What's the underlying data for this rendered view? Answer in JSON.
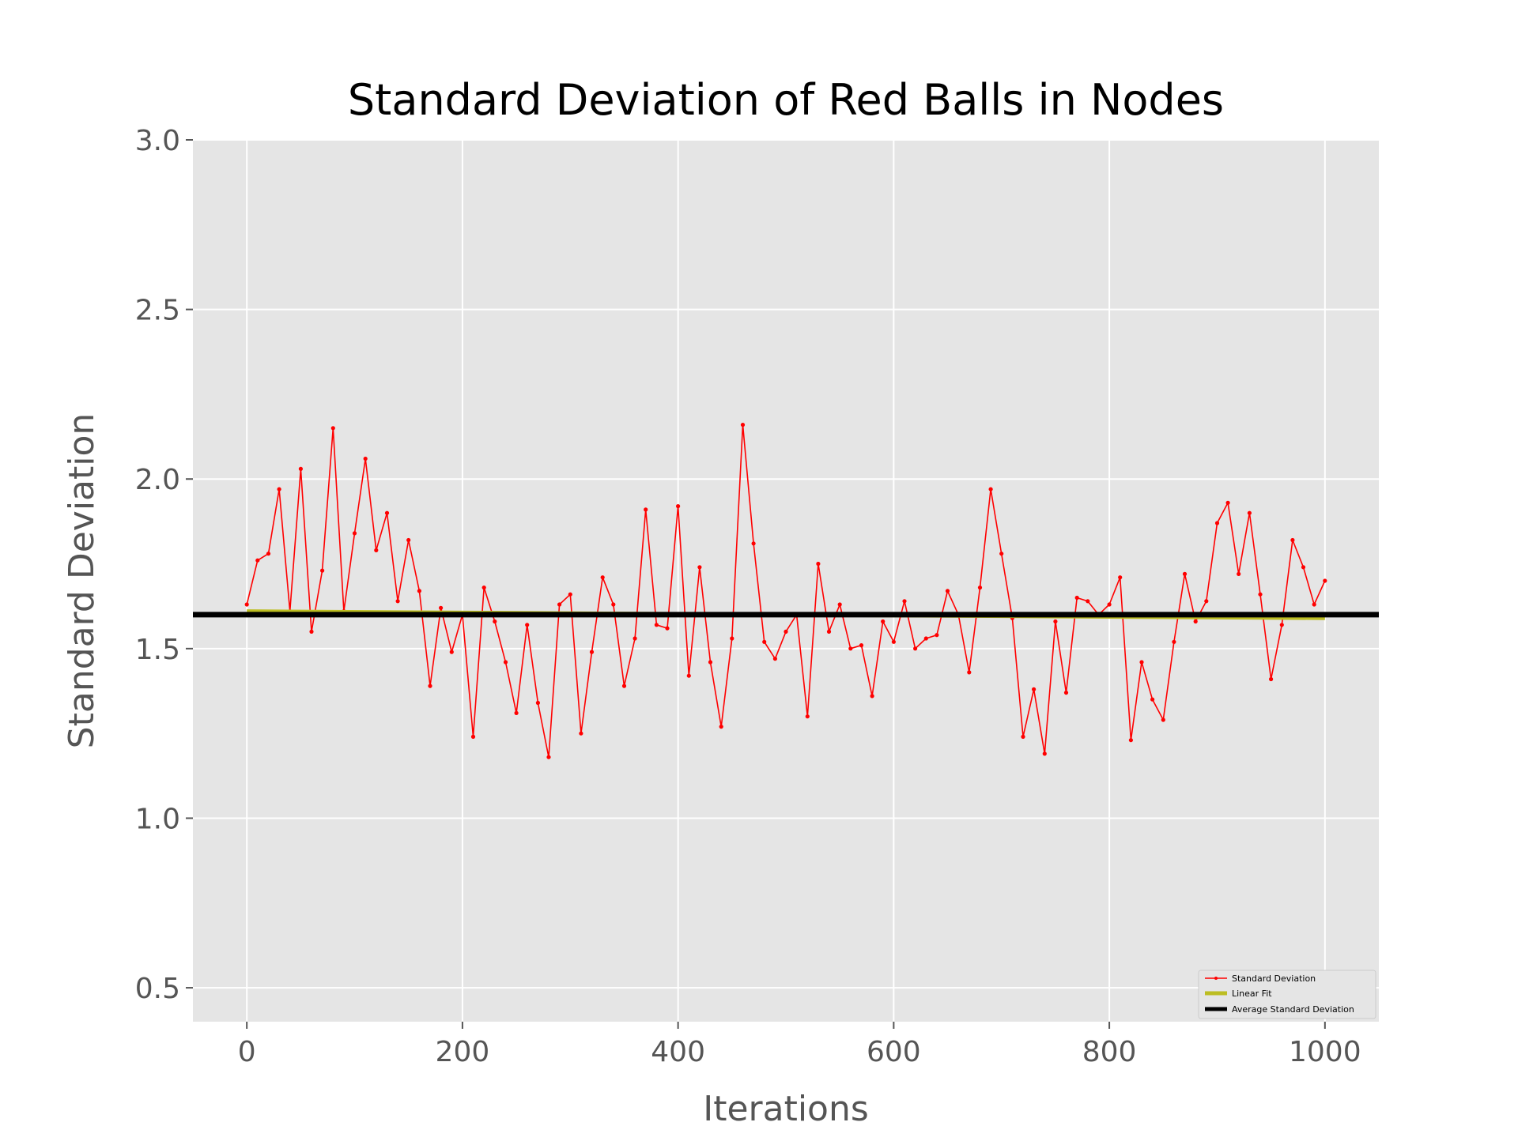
{
  "chart_data": {
    "type": "line",
    "title": "Standard Deviation of Red Balls in Nodes",
    "xlabel": "Iterations",
    "ylabel": "Standard Deviation",
    "xlim": [
      -50,
      1050
    ],
    "ylim": [
      0.4,
      3.0
    ],
    "xticks": [
      0,
      200,
      400,
      600,
      800,
      1000
    ],
    "yticks": [
      0.5,
      1.0,
      1.5,
      2.0,
      2.5,
      3.0
    ],
    "xtick_labels": [
      "0",
      "200",
      "400",
      "600",
      "800",
      "1000"
    ],
    "ytick_labels": [
      "0.5",
      "1.0",
      "1.5",
      "2.0",
      "2.5",
      "3.0"
    ],
    "grid": true,
    "legend_position": "bottom-right",
    "series": [
      {
        "name": "Standard Deviation",
        "color": "#ff0000",
        "style": "line-with-markers",
        "x_start": 0,
        "x_step": 10,
        "values": [
          1.63,
          1.76,
          1.78,
          1.97,
          1.61,
          2.03,
          1.55,
          1.73,
          2.15,
          1.61,
          1.84,
          2.06,
          1.79,
          1.9,
          1.64,
          1.82,
          1.67,
          1.39,
          1.62,
          1.49,
          1.6,
          1.24,
          1.68,
          1.58,
          1.46,
          1.31,
          1.57,
          1.34,
          1.18,
          1.63,
          1.66,
          1.25,
          1.49,
          1.71,
          1.63,
          1.39,
          1.53,
          1.91,
          1.57,
          1.56,
          1.92,
          1.42,
          1.74,
          1.46,
          1.27,
          1.53,
          2.16,
          1.81,
          1.52,
          1.47,
          1.55,
          1.6,
          1.3,
          1.75,
          1.55,
          1.63,
          1.5,
          1.51,
          1.36,
          1.58,
          1.52,
          1.64,
          1.5,
          1.53,
          1.54,
          1.67,
          1.6,
          1.43,
          1.68,
          1.97,
          1.78,
          1.59,
          1.24,
          1.38,
          1.19,
          1.58,
          1.37,
          1.65,
          1.64,
          1.6,
          1.63,
          1.71,
          1.23,
          1.46,
          1.35,
          1.29,
          1.52,
          1.72,
          1.58,
          1.64,
          1.87,
          1.93,
          1.72,
          1.9,
          1.66,
          1.41,
          1.57,
          1.82,
          1.74,
          1.63,
          1.7
        ]
      }
    ],
    "reference_lines": [
      {
        "name": "Linear Fit",
        "color": "#bcbd22",
        "x": [
          0,
          1000
        ],
        "y": [
          1.61,
          1.59
        ]
      },
      {
        "name": "Average Standard Deviation",
        "color": "#000000",
        "x": [
          -50,
          1050
        ],
        "y": [
          1.6,
          1.6
        ]
      }
    ],
    "legend": [
      "Standard Deviation",
      "Linear Fit",
      "Average Standard Deviation"
    ]
  }
}
